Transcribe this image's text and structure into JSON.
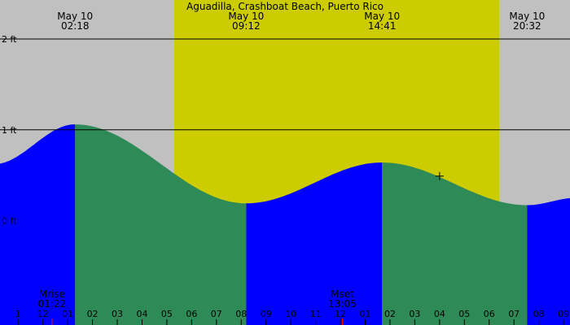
{
  "chart_data": {
    "type": "area",
    "title": "Aguadilla, Crashboat Beach, Puerto Rico",
    "y_axis": {
      "unit": "ft",
      "ticks": [
        {
          "value": 2,
          "label": "2 ft"
        },
        {
          "value": 1,
          "label": "1 ft"
        },
        {
          "value": 0,
          "label": "0 ft"
        }
      ],
      "range": [
        -1.15,
        2.43
      ]
    },
    "x_axis": {
      "range_hours": [
        -0.73,
        22.26
      ],
      "hour_labels": [
        "1",
        "12",
        "01",
        "02",
        "03",
        "04",
        "05",
        "06",
        "07",
        "08",
        "09",
        "10",
        "11",
        "12",
        "01",
        "02",
        "03",
        "04",
        "05",
        "06",
        "07",
        "08",
        "09"
      ]
    },
    "daylight": {
      "start_hour": 6.3,
      "end_hour": 19.4
    },
    "tide_extremes": [
      {
        "date": "May 10",
        "time": "02:18",
        "hour": 2.3,
        "height": 1.06,
        "kind": "high"
      },
      {
        "date": "May 10",
        "time": "09:12",
        "hour": 9.2,
        "height": 0.19,
        "kind": "low"
      },
      {
        "date": "May 10",
        "time": "14:41",
        "hour": 14.68,
        "height": 0.64,
        "kind": "high"
      },
      {
        "date": "May 10",
        "time": "20:32",
        "hour": 20.53,
        "height": 0.17,
        "kind": "low"
      }
    ],
    "curve_start": {
      "hour": -1.0,
      "height": 0.62
    },
    "curve_end": {
      "hour": 22.5,
      "height": 0.25
    },
    "moon_events": [
      {
        "label": "Mrise",
        "time": "01:22",
        "hour": 1.37
      },
      {
        "label": "Mset",
        "time": "13:05",
        "hour": 13.08
      }
    ],
    "now_marker": {
      "hour": 17.0,
      "height": 0.49
    },
    "colors": {
      "night": "#c0c0c0",
      "day": "#cccc00",
      "rising": "#0000ff",
      "falling": "#2e8b57",
      "moon_tick": "#ff0000",
      "line": "#000000"
    },
    "legend": "none",
    "grid": "horizontal lines at 1 ft and 2 ft"
  }
}
